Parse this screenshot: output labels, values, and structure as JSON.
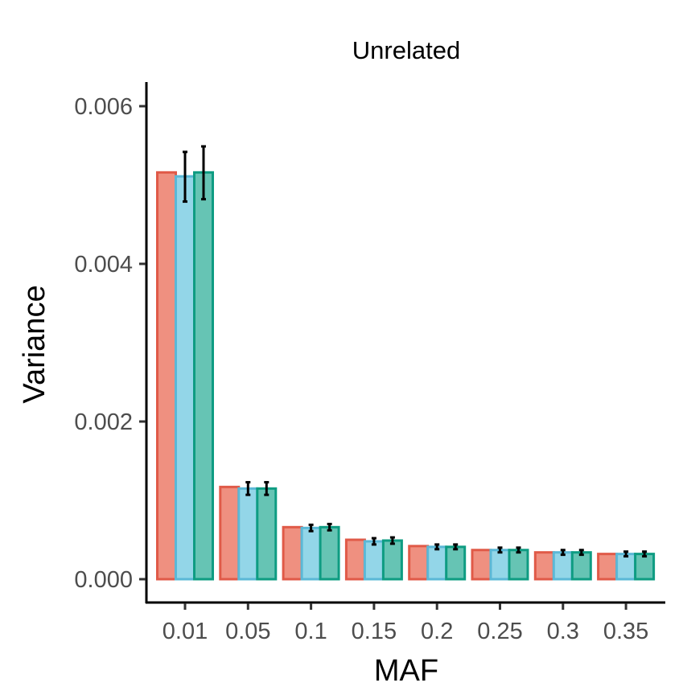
{
  "chart_data": {
    "type": "bar",
    "title": "Unrelated",
    "xlabel": "MAF",
    "ylabel": "Variance",
    "categories": [
      "0.01",
      "0.05",
      "0.1",
      "0.15",
      "0.2",
      "0.25",
      "0.3",
      "0.35"
    ],
    "yticks": [
      "0.000",
      "0.002",
      "0.004",
      "0.006"
    ],
    "ylim": [
      -0.00029,
      0.0063
    ],
    "grid": false,
    "legend": "none",
    "series": [
      {
        "fill": "#ef9080",
        "stroke": "#e05a48",
        "values": [
          0.00516,
          0.00117,
          0.00066,
          0.0005,
          0.00042,
          0.00037,
          0.00034,
          0.00032
        ],
        "errors": null
      },
      {
        "fill": "#93d6e8",
        "stroke": "#5bb8d6",
        "values": [
          0.00511,
          0.00115,
          0.00065,
          0.00048,
          0.00041,
          0.00037,
          0.00034,
          0.00032
        ],
        "errors": [
          [
            0.00479,
            0.00542
          ],
          [
            0.00107,
            0.00123
          ],
          [
            0.00061,
            0.00069
          ],
          [
            0.00044,
            0.00052
          ],
          [
            0.00038,
            0.00044
          ],
          [
            0.00034,
            0.0004
          ],
          [
            0.00031,
            0.00037
          ],
          [
            0.00029,
            0.00035
          ]
        ]
      },
      {
        "fill": "#66c4b4",
        "stroke": "#0e9c82",
        "values": [
          0.00516,
          0.00115,
          0.00066,
          0.00049,
          0.00041,
          0.00037,
          0.00034,
          0.00032
        ],
        "errors": [
          [
            0.00482,
            0.00549
          ],
          [
            0.00107,
            0.00123
          ],
          [
            0.00062,
            0.0007
          ],
          [
            0.00045,
            0.00053
          ],
          [
            0.00038,
            0.00044
          ],
          [
            0.00034,
            0.0004
          ],
          [
            0.00031,
            0.00037
          ],
          [
            0.00029,
            0.00035
          ]
        ]
      }
    ]
  }
}
